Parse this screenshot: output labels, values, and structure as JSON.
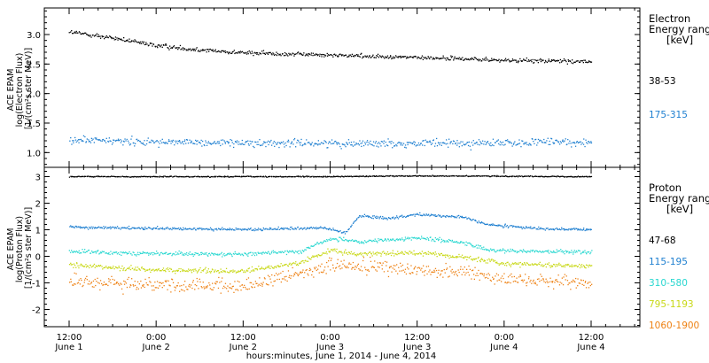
{
  "x_axis": {
    "ticks": [
      {
        "time": "12:00",
        "day": "June 1",
        "hour": 0
      },
      {
        "time": "0:00",
        "day": "June 2",
        "hour": 12
      },
      {
        "time": "12:00",
        "day": "June 2",
        "hour": 24
      },
      {
        "time": "0:00",
        "day": "June 3",
        "hour": 36
      },
      {
        "time": "12:00",
        "day": "June 3",
        "hour": 48
      },
      {
        "time": "0:00",
        "day": "June 4",
        "hour": 60
      },
      {
        "time": "12:00",
        "day": "June 4",
        "hour": 72
      }
    ],
    "label": "hours:minutes, June  1, 2014 - June  4, 2014"
  },
  "chart_data": [
    {
      "type": "scatter",
      "name": "electron",
      "ylabel_lines": [
        "ACE EPAM",
        "log(Electron Flux)",
        "[1/(cm²s ster MeV)]"
      ],
      "yticks": [
        1.0,
        1.5,
        2.0,
        2.5,
        3.0
      ],
      "ytick_labels": [
        "1.0",
        "1.5",
        "2.0",
        "2.5",
        "3.0"
      ],
      "ylim": [
        0.75,
        3.45
      ],
      "x_unit": "hours since June 1 12:00",
      "legend_title": [
        "Electron",
        "Energy ranges",
        "[keV]"
      ],
      "series": [
        {
          "name": "38-53",
          "color": "#000000",
          "points": [
            [
              0,
              3.05
            ],
            [
              6,
              2.95
            ],
            [
              12,
              2.82
            ],
            [
              18,
              2.75
            ],
            [
              24,
              2.7
            ],
            [
              30,
              2.68
            ],
            [
              36,
              2.66
            ],
            [
              42,
              2.64
            ],
            [
              48,
              2.62
            ],
            [
              54,
              2.6
            ],
            [
              60,
              2.57
            ],
            [
              66,
              2.56
            ],
            [
              72,
              2.55
            ]
          ],
          "noise": 0.04
        },
        {
          "name": "175-315",
          "color": "#1e7fd0",
          "points": [
            [
              0,
              1.22
            ],
            [
              12,
              1.19
            ],
            [
              24,
              1.17
            ],
            [
              36,
              1.17
            ],
            [
              48,
              1.16
            ],
            [
              60,
              1.17
            ],
            [
              66,
              1.18
            ],
            [
              72,
              1.19
            ]
          ],
          "noise": 0.07
        }
      ]
    },
    {
      "type": "scatter",
      "name": "proton",
      "ylabel_lines": [
        "ACE EPAM",
        "log(Proton Flux)",
        "[1/(cm²s ster MeV)]"
      ],
      "yticks": [
        -2,
        -1,
        0,
        1,
        2,
        3
      ],
      "ytick_labels": [
        "-2",
        "-1",
        "0",
        "1",
        "2",
        "3"
      ],
      "ylim": [
        -2.65,
        3.35
      ],
      "x_unit": "hours since June 1 12:00",
      "legend_title": [
        "Proton",
        "Energy ranges",
        "[keV]"
      ],
      "series": [
        {
          "name": "47-68",
          "color": "#000000",
          "points": [
            [
              0,
              3.02
            ],
            [
              36,
              3.02
            ],
            [
              48,
              3.05
            ],
            [
              72,
              3.02
            ]
          ],
          "noise": 0.02
        },
        {
          "name": "115-195",
          "color": "#1e7fd0",
          "points": [
            [
              0,
              1.12
            ],
            [
              12,
              1.06
            ],
            [
              24,
              1.03
            ],
            [
              35,
              1.1
            ],
            [
              38,
              0.9
            ],
            [
              40,
              1.55
            ],
            [
              44,
              1.45
            ],
            [
              48,
              1.6
            ],
            [
              54,
              1.5
            ],
            [
              58,
              1.2
            ],
            [
              66,
              1.05
            ],
            [
              72,
              1.02
            ]
          ],
          "noise": 0.06
        },
        {
          "name": "310-580",
          "color": "#29d7d0",
          "points": [
            [
              0,
              0.2
            ],
            [
              12,
              0.12
            ],
            [
              24,
              0.1
            ],
            [
              32,
              0.22
            ],
            [
              36,
              0.7
            ],
            [
              40,
              0.55
            ],
            [
              48,
              0.72
            ],
            [
              54,
              0.55
            ],
            [
              58,
              0.25
            ],
            [
              66,
              0.2
            ],
            [
              72,
              0.18
            ]
          ],
          "noise": 0.08
        },
        {
          "name": "795-1193",
          "color": "#c8d816",
          "points": [
            [
              0,
              -0.3
            ],
            [
              12,
              -0.5
            ],
            [
              24,
              -0.55
            ],
            [
              32,
              -0.2
            ],
            [
              36,
              0.25
            ],
            [
              40,
              0.1
            ],
            [
              48,
              0.15
            ],
            [
              54,
              0.0
            ],
            [
              60,
              -0.25
            ],
            [
              72,
              -0.35
            ]
          ],
          "noise": 0.1
        },
        {
          "name": "1060-1900",
          "color": "#ee8214",
          "points": [
            [
              0,
              -0.9
            ],
            [
              12,
              -1.05
            ],
            [
              24,
              -1.1
            ],
            [
              32,
              -0.6
            ],
            [
              36,
              -0.3
            ],
            [
              42,
              -0.4
            ],
            [
              48,
              -0.45
            ],
            [
              54,
              -0.6
            ],
            [
              60,
              -0.85
            ],
            [
              72,
              -1.0
            ]
          ],
          "noise": 0.28
        }
      ]
    }
  ]
}
